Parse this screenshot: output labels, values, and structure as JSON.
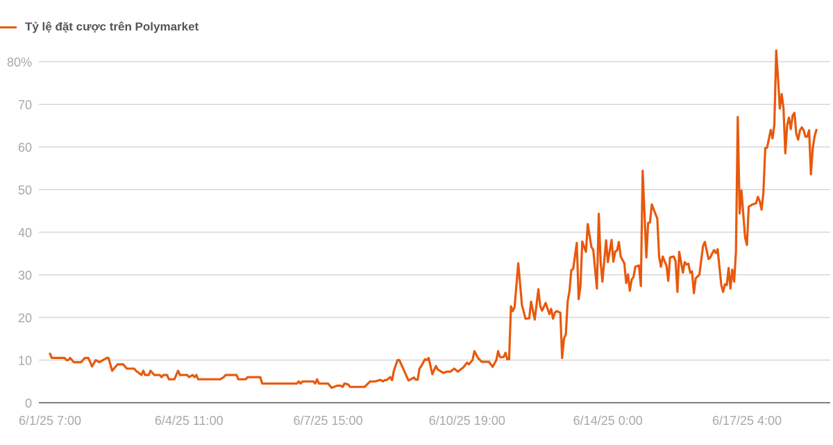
{
  "chart_data": {
    "type": "line",
    "title": "",
    "xlabel": "",
    "ylabel": "",
    "ylim": [
      0,
      80
    ],
    "y_ticks": [
      "0",
      "10",
      "20",
      "30",
      "40",
      "50",
      "60",
      "70",
      "80%"
    ],
    "x_ticks": [
      {
        "at": "2025-06-01 07:00",
        "label": "6/1/25 7:00"
      },
      {
        "at": "2025-06-04 11:00",
        "label": "6/4/25 11:00"
      },
      {
        "at": "2025-06-07 15:00",
        "label": "6/7/25 15:00"
      },
      {
        "at": "2025-06-10 19:00",
        "label": "6/10/25 19:00"
      },
      {
        "at": "2025-06-14 00:00",
        "label": "6/14/25 0:00"
      },
      {
        "at": "2025-06-17 04:00",
        "label": "6/17/25 4:00"
      }
    ],
    "grid": true,
    "legend_position": "top-left",
    "series": [
      {
        "name": "Tỷ lệ đặt cược trên Polymarket",
        "color": "#e8590c",
        "points": [
          [
            "2025-06-01 07:00",
            11.5
          ],
          [
            "2025-06-01 08:00",
            10.5
          ],
          [
            "2025-06-01 15:00",
            10.5
          ],
          [
            "2025-06-01 16:00",
            10
          ],
          [
            "2025-06-01 17:00",
            10
          ],
          [
            "2025-06-01 18:00",
            10.5
          ],
          [
            "2025-06-01 20:00",
            9.5
          ],
          [
            "2025-06-02 00:00",
            9.5
          ],
          [
            "2025-06-02 02:00",
            10.5
          ],
          [
            "2025-06-02 04:00",
            10.5
          ],
          [
            "2025-06-02 06:00",
            8.5
          ],
          [
            "2025-06-02 08:00",
            10
          ],
          [
            "2025-06-02 10:00",
            9.5
          ],
          [
            "2025-06-02 12:00",
            10
          ],
          [
            "2025-06-02 14:00",
            10.5
          ],
          [
            "2025-06-02 15:00",
            10.5
          ],
          [
            "2025-06-02 17:00",
            7.5
          ],
          [
            "2025-06-02 20:00",
            9
          ],
          [
            "2025-06-02 23:00",
            9
          ],
          [
            "2025-06-03 01:00",
            8
          ],
          [
            "2025-06-03 03:00",
            8
          ],
          [
            "2025-06-03 05:00",
            8
          ],
          [
            "2025-06-03 06:00",
            7.5
          ],
          [
            "2025-06-03 09:00",
            6.5
          ],
          [
            "2025-06-03 10:00",
            7.5
          ],
          [
            "2025-06-03 11:00",
            6.5
          ],
          [
            "2025-06-03 13:00",
            6.5
          ],
          [
            "2025-06-03 14:00",
            7.5
          ],
          [
            "2025-06-03 16:00",
            6.5
          ],
          [
            "2025-06-03 19:00",
            6.5
          ],
          [
            "2025-06-03 20:00",
            6
          ],
          [
            "2025-06-03 21:00",
            6.5
          ],
          [
            "2025-06-03 23:00",
            6.5
          ],
          [
            "2025-06-04 00:00",
            5.5
          ],
          [
            "2025-06-04 03:00",
            5.5
          ],
          [
            "2025-06-04 05:00",
            7.5
          ],
          [
            "2025-06-04 06:00",
            6.5
          ],
          [
            "2025-06-04 10:00",
            6.5
          ],
          [
            "2025-06-04 11:00",
            6
          ],
          [
            "2025-06-04 13:00",
            6.5
          ],
          [
            "2025-06-04 14:00",
            6
          ],
          [
            "2025-06-04 15:00",
            6.5
          ],
          [
            "2025-06-04 16:00",
            5.5
          ],
          [
            "2025-06-05 04:00",
            5.5
          ],
          [
            "2025-06-05 06:00",
            6
          ],
          [
            "2025-06-05 07:00",
            6.5
          ],
          [
            "2025-06-05 13:00",
            6.5
          ],
          [
            "2025-06-05 14:00",
            5.5
          ],
          [
            "2025-06-05 18:00",
            5.5
          ],
          [
            "2025-06-05 19:00",
            6
          ],
          [
            "2025-06-06 02:00",
            6
          ],
          [
            "2025-06-06 03:00",
            4.5
          ],
          [
            "2025-06-06 22:00",
            4.5
          ],
          [
            "2025-06-06 23:00",
            5
          ],
          [
            "2025-06-07 00:00",
            4.5
          ],
          [
            "2025-06-07 01:00",
            5
          ],
          [
            "2025-06-07 07:00",
            5
          ],
          [
            "2025-06-07 08:00",
            4.5
          ],
          [
            "2025-06-07 09:00",
            5.5
          ],
          [
            "2025-06-07 10:00",
            4.5
          ],
          [
            "2025-06-07 15:00",
            4.5
          ],
          [
            "2025-06-07 17:00",
            3.5
          ],
          [
            "2025-06-07 20:00",
            4
          ],
          [
            "2025-06-07 22:00",
            4
          ],
          [
            "2025-06-07 23:00",
            3.7
          ],
          [
            "2025-06-08 00:00",
            4.5
          ],
          [
            "2025-06-08 02:00",
            4.3
          ],
          [
            "2025-06-08 03:00",
            3.7
          ],
          [
            "2025-06-08 11:00",
            3.7
          ],
          [
            "2025-06-08 14:00",
            5
          ],
          [
            "2025-06-08 17:00",
            5
          ],
          [
            "2025-06-08 19:00",
            5.3
          ],
          [
            "2025-06-08 20:00",
            5.3
          ],
          [
            "2025-06-08 21:00",
            5
          ],
          [
            "2025-06-08 22:00",
            5.3
          ],
          [
            "2025-06-08 23:00",
            5.3
          ],
          [
            "2025-06-09 01:00",
            6
          ],
          [
            "2025-06-09 02:00",
            5.3
          ],
          [
            "2025-06-09 03:00",
            7.5
          ],
          [
            "2025-06-09 05:00",
            10
          ],
          [
            "2025-06-09 06:00",
            10
          ],
          [
            "2025-06-09 11:00",
            5.2
          ],
          [
            "2025-06-09 14:00",
            5.9
          ],
          [
            "2025-06-09 15:00",
            5.4
          ],
          [
            "2025-06-09 16:00",
            5.4
          ],
          [
            "2025-06-09 17:00",
            8
          ],
          [
            "2025-06-09 18:00",
            8.6
          ],
          [
            "2025-06-09 20:00",
            10.2
          ],
          [
            "2025-06-09 21:00",
            10
          ],
          [
            "2025-06-09 22:00",
            10.5
          ],
          [
            "2025-06-10 00:00",
            6.7
          ],
          [
            "2025-06-10 02:00",
            8.6
          ],
          [
            "2025-06-10 03:00",
            7.8
          ],
          [
            "2025-06-10 06:00",
            7
          ],
          [
            "2025-06-10 08:00",
            7.3
          ],
          [
            "2025-06-10 10:00",
            7.3
          ],
          [
            "2025-06-10 12:00",
            8
          ],
          [
            "2025-06-10 14:00",
            7.3
          ],
          [
            "2025-06-10 17:00",
            8.3
          ],
          [
            "2025-06-10 19:00",
            9.4
          ],
          [
            "2025-06-10 20:00",
            9
          ],
          [
            "2025-06-10 22:00",
            10
          ],
          [
            "2025-06-10 23:00",
            12.1
          ],
          [
            "2025-06-11 01:00",
            10.5
          ],
          [
            "2025-06-11 03:00",
            9.6
          ],
          [
            "2025-06-11 07:00",
            9.6
          ],
          [
            "2025-06-11 09:00",
            8.4
          ],
          [
            "2025-06-11 11:00",
            10
          ],
          [
            "2025-06-11 12:00",
            12.1
          ],
          [
            "2025-06-11 13:00",
            10.7
          ],
          [
            "2025-06-11 15:00",
            10.7
          ],
          [
            "2025-06-11 16:00",
            11.7
          ],
          [
            "2025-06-11 17:00",
            10.2
          ],
          [
            "2025-06-11 18:00",
            10.2
          ],
          [
            "2025-06-11 19:00",
            22.6
          ],
          [
            "2025-06-11 20:00",
            21.5
          ],
          [
            "2025-06-11 21:00",
            22.4
          ],
          [
            "2025-06-11 23:00",
            32.7
          ],
          [
            "2025-06-12 01:00",
            22.9
          ],
          [
            "2025-06-12 03:00",
            19.7
          ],
          [
            "2025-06-12 05:00",
            19.8
          ],
          [
            "2025-06-12 06:00",
            23.7
          ],
          [
            "2025-06-12 08:00",
            19.5
          ],
          [
            "2025-06-12 10:00",
            26.6
          ],
          [
            "2025-06-12 11:00",
            22.7
          ],
          [
            "2025-06-12 12:00",
            21.6
          ],
          [
            "2025-06-12 14:00",
            23.4
          ],
          [
            "2025-06-12 16:00",
            20.8
          ],
          [
            "2025-06-12 17:00",
            22
          ],
          [
            "2025-06-12 18:00",
            19.7
          ],
          [
            "2025-06-12 19:00",
            21.1
          ],
          [
            "2025-06-12 20:00",
            21.5
          ],
          [
            "2025-06-12 22:00",
            21.1
          ],
          [
            "2025-06-12 23:00",
            10.5
          ],
          [
            "2025-06-13 00:00",
            15.1
          ],
          [
            "2025-06-13 01:00",
            16
          ],
          [
            "2025-06-13 02:00",
            23.8
          ],
          [
            "2025-06-13 03:00",
            26.2
          ],
          [
            "2025-06-13 04:00",
            31.1
          ],
          [
            "2025-06-13 05:00",
            31.4
          ],
          [
            "2025-06-13 07:00",
            37.5
          ],
          [
            "2025-06-13 08:00",
            24.3
          ],
          [
            "2025-06-13 09:00",
            27.3
          ],
          [
            "2025-06-13 10:00",
            37.8
          ],
          [
            "2025-06-13 12:00",
            35.4
          ],
          [
            "2025-06-13 13:00",
            41.9
          ],
          [
            "2025-06-13 15:00",
            36.5
          ],
          [
            "2025-06-13 16:00",
            35.9
          ],
          [
            "2025-06-13 18:00",
            26.8
          ],
          [
            "2025-06-13 19:00",
            44.3
          ],
          [
            "2025-06-13 20:00",
            33.2
          ],
          [
            "2025-06-13 21:00",
            28.4
          ],
          [
            "2025-06-13 23:00",
            38.1
          ],
          [
            "2025-06-14 00:00",
            33
          ],
          [
            "2025-06-14 02:00",
            38.2
          ],
          [
            "2025-06-14 03:00",
            33.1
          ],
          [
            "2025-06-14 04:00",
            35.5
          ],
          [
            "2025-06-14 05:00",
            35.7
          ],
          [
            "2025-06-14 06:00",
            37.7
          ],
          [
            "2025-06-14 07:00",
            34.3
          ],
          [
            "2025-06-14 09:00",
            32.7
          ],
          [
            "2025-06-14 10:00",
            28.1
          ],
          [
            "2025-06-14 11:00",
            30.1
          ],
          [
            "2025-06-14 12:00",
            26.3
          ],
          [
            "2025-06-14 13:00",
            28.9
          ],
          [
            "2025-06-14 14:00",
            29.5
          ],
          [
            "2025-06-14 15:00",
            31.9
          ],
          [
            "2025-06-14 17:00",
            32.2
          ],
          [
            "2025-06-14 18:00",
            27.4
          ],
          [
            "2025-06-14 19:00",
            54.4
          ],
          [
            "2025-06-14 21:00",
            34.1
          ],
          [
            "2025-06-14 22:00",
            42.2
          ],
          [
            "2025-06-14 23:00",
            42.3
          ],
          [
            "2025-06-15 00:00",
            46.5
          ],
          [
            "2025-06-15 02:00",
            44.3
          ],
          [
            "2025-06-15 03:00",
            43.2
          ],
          [
            "2025-06-15 04:00",
            34.3
          ],
          [
            "2025-06-15 05:00",
            31.9
          ],
          [
            "2025-06-15 06:00",
            34.3
          ],
          [
            "2025-06-15 07:00",
            33.2
          ],
          [
            "2025-06-15 08:00",
            32.2
          ],
          [
            "2025-06-15 09:00",
            28.6
          ],
          [
            "2025-06-15 10:00",
            34.1
          ],
          [
            "2025-06-15 12:00",
            34.3
          ],
          [
            "2025-06-15 13:00",
            33.2
          ],
          [
            "2025-06-15 14:00",
            26
          ],
          [
            "2025-06-15 15:00",
            35.4
          ],
          [
            "2025-06-15 17:00",
            30.5
          ],
          [
            "2025-06-15 18:00",
            33
          ],
          [
            "2025-06-15 19:00",
            32.4
          ],
          [
            "2025-06-15 20:00",
            32.6
          ],
          [
            "2025-06-15 21:00",
            30.5
          ],
          [
            "2025-06-15 22:00",
            30.8
          ],
          [
            "2025-06-15 23:00",
            25.7
          ],
          [
            "2025-06-16 00:00",
            29.2
          ],
          [
            "2025-06-16 02:00",
            30
          ],
          [
            "2025-06-16 04:00",
            36.8
          ],
          [
            "2025-06-16 05:00",
            37.7
          ],
          [
            "2025-06-16 07:00",
            33.7
          ],
          [
            "2025-06-16 08:00",
            34.1
          ],
          [
            "2025-06-16 09:00",
            35
          ],
          [
            "2025-06-16 10:00",
            35.8
          ],
          [
            "2025-06-16 11:00",
            35.1
          ],
          [
            "2025-06-16 12:00",
            36
          ],
          [
            "2025-06-16 14:00",
            27.6
          ],
          [
            "2025-06-16 15:00",
            26
          ],
          [
            "2025-06-16 16:00",
            27.8
          ],
          [
            "2025-06-16 17:00",
            27.6
          ],
          [
            "2025-06-16 18:00",
            31.6
          ],
          [
            "2025-06-16 19:00",
            26.8
          ],
          [
            "2025-06-16 20:00",
            31.2
          ],
          [
            "2025-06-16 21:00",
            28.4
          ],
          [
            "2025-06-16 22:00",
            35.4
          ],
          [
            "2025-06-16 23:00",
            67
          ],
          [
            "2025-06-17 00:00",
            44.4
          ],
          [
            "2025-06-17 01:00",
            49.8
          ],
          [
            "2025-06-17 03:00",
            38.7
          ],
          [
            "2025-06-17 04:00",
            37
          ],
          [
            "2025-06-17 05:00",
            46
          ],
          [
            "2025-06-17 07:00",
            46.5
          ],
          [
            "2025-06-17 09:00",
            46.8
          ],
          [
            "2025-06-17 10:00",
            48.3
          ],
          [
            "2025-06-17 11:00",
            47.3
          ],
          [
            "2025-06-17 12:00",
            45.3
          ],
          [
            "2025-06-17 13:00",
            49.2
          ],
          [
            "2025-06-17 14:00",
            59.7
          ],
          [
            "2025-06-17 15:00",
            59.8
          ],
          [
            "2025-06-17 17:00",
            64
          ],
          [
            "2025-06-17 18:00",
            62
          ],
          [
            "2025-06-17 19:00",
            65.2
          ],
          [
            "2025-06-17 20:00",
            82.6
          ],
          [
            "2025-06-17 21:00",
            76.1
          ],
          [
            "2025-06-17 22:00",
            69
          ],
          [
            "2025-06-17 23:00",
            72.4
          ],
          [
            "2025-06-18 00:00",
            69
          ],
          [
            "2025-06-18 01:00",
            58.5
          ],
          [
            "2025-06-18 02:00",
            65.2
          ],
          [
            "2025-06-18 03:00",
            66.9
          ],
          [
            "2025-06-18 04:00",
            64.2
          ],
          [
            "2025-06-18 05:00",
            67.4
          ],
          [
            "2025-06-18 06:00",
            68
          ],
          [
            "2025-06-18 07:00",
            63.1
          ],
          [
            "2025-06-18 08:00",
            61.7
          ],
          [
            "2025-06-18 09:00",
            63.9
          ],
          [
            "2025-06-18 10:00",
            64.6
          ],
          [
            "2025-06-18 11:00",
            63.9
          ],
          [
            "2025-06-18 12:00",
            62.4
          ],
          [
            "2025-06-18 13:00",
            62.4
          ],
          [
            "2025-06-18 14:00",
            63.9
          ],
          [
            "2025-06-18 15:00",
            53.6
          ],
          [
            "2025-06-18 16:00",
            59.8
          ],
          [
            "2025-06-18 17:00",
            62.5
          ],
          [
            "2025-06-18 18:00",
            64
          ]
        ]
      }
    ]
  }
}
